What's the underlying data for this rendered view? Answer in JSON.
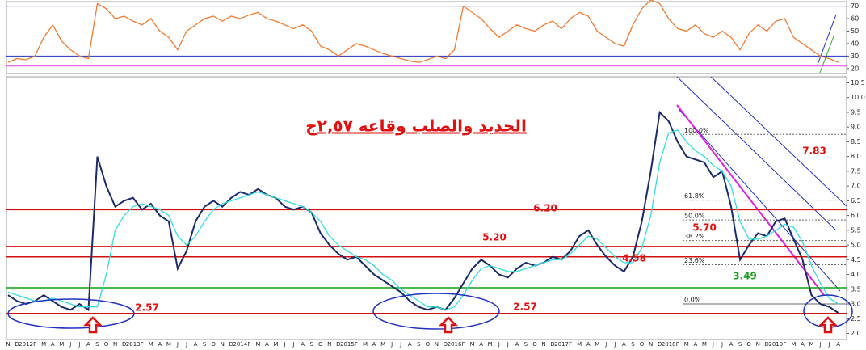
{
  "chart_data": [
    {
      "type": "line",
      "ylim": [
        16,
        73
      ],
      "yticks": [
        20,
        30,
        40,
        50,
        60,
        70
      ],
      "hlines": [
        {
          "value": 70,
          "color": "#2030c0"
        },
        {
          "value": 30,
          "color": "#2030c0"
        },
        {
          "value": 22,
          "color": "#e040e0"
        }
      ],
      "series": [
        {
          "color": "#f07a30",
          "values": [
            25,
            28,
            27,
            30,
            45,
            55,
            42,
            35,
            30,
            28,
            72,
            68,
            60,
            62,
            58,
            55,
            60,
            50,
            45,
            35,
            50,
            55,
            60,
            62,
            58,
            62,
            60,
            63,
            65,
            60,
            58,
            55,
            52,
            55,
            50,
            38,
            35,
            30,
            35,
            40,
            38,
            35,
            32,
            30,
            28,
            26,
            25,
            27,
            30,
            28,
            35,
            70,
            65,
            60,
            52,
            45,
            50,
            55,
            52,
            50,
            55,
            58,
            52,
            60,
            65,
            62,
            50,
            45,
            40,
            38,
            55,
            68,
            75,
            72,
            60,
            52,
            50,
            55,
            48,
            45,
            50,
            45,
            35,
            48,
            55,
            50,
            58,
            60,
            45,
            40,
            35,
            30,
            28,
            25
          ]
        }
      ]
    },
    {
      "type": "line",
      "title": "الحديد والصلب وقاعه ٢,٥٧ج",
      "categories": [
        "N",
        "D",
        "2012",
        "F",
        "M",
        "A",
        "M",
        "J",
        "J",
        "A",
        "S",
        "O",
        "N",
        "D",
        "2013",
        "F",
        "M",
        "A",
        "M",
        "J",
        "J",
        "A",
        "S",
        "O",
        "N",
        "D",
        "2014",
        "F",
        "M",
        "A",
        "M",
        "J",
        "J",
        "A",
        "S",
        "O",
        "N",
        "D",
        "2015",
        "F",
        "M",
        "A",
        "M",
        "J",
        "J",
        "A",
        "S",
        "O",
        "N",
        "D",
        "2016",
        "F",
        "M",
        "A",
        "M",
        "J",
        "J",
        "A",
        "S",
        "O",
        "N",
        "D",
        "2017",
        "F",
        "M",
        "A",
        "M",
        "J",
        "J",
        "A",
        "S",
        "O",
        "N",
        "D",
        "2018",
        "F",
        "M",
        "A",
        "M",
        "J",
        "J",
        "A",
        "S",
        "O",
        "N",
        "D",
        "2019",
        "F",
        "M",
        "A",
        "M",
        "J",
        "J",
        "A"
      ],
      "ylim": [
        1.85,
        10.65
      ],
      "yticks": [
        {
          "value": 2,
          "label": "2.0"
        },
        2.5,
        {
          "value": 3,
          "label": "3.0"
        },
        3.5,
        {
          "value": 4,
          "label": "4.0"
        },
        4.5,
        {
          "value": 5,
          "label": "5.0"
        },
        5.5,
        {
          "value": 6,
          "label": "6.0"
        },
        6.5,
        {
          "value": 7,
          "label": "7.0"
        },
        7.5,
        {
          "value": 8,
          "label": "8.0"
        },
        8.5,
        {
          "value": 9,
          "label": "9.0"
        },
        9.5,
        {
          "value": 10,
          "label": "10.0"
        },
        10.5
      ],
      "series": [
        {
          "color": "#1a2a6c",
          "values": [
            3.3,
            3.1,
            3.0,
            3.1,
            3.3,
            3.1,
            2.9,
            2.8,
            3.0,
            2.8,
            8.0,
            7.0,
            6.3,
            6.5,
            6.6,
            6.2,
            6.4,
            6.0,
            5.8,
            4.2,
            4.8,
            5.8,
            6.3,
            6.5,
            6.3,
            6.6,
            6.8,
            6.7,
            6.9,
            6.7,
            6.6,
            6.3,
            6.2,
            6.3,
            6.1,
            5.4,
            5.0,
            4.7,
            4.5,
            4.6,
            4.3,
            4.0,
            3.8,
            3.6,
            3.4,
            3.1,
            2.9,
            2.8,
            2.9,
            2.8,
            3.2,
            3.7,
            4.2,
            4.5,
            4.3,
            4.0,
            3.9,
            4.2,
            4.4,
            4.3,
            4.4,
            4.6,
            4.5,
            4.8,
            5.3,
            5.5,
            5.0,
            4.6,
            4.3,
            4.1,
            4.6,
            5.8,
            7.5,
            9.5,
            9.2,
            8.5,
            8.0,
            7.9,
            7.8,
            7.3,
            7.5,
            6.3,
            4.5,
            5.0,
            5.4,
            5.3,
            5.8,
            5.9,
            5.2,
            4.5,
            3.3,
            3.0,
            2.9,
            2.7
          ]
        },
        {
          "color": "#33dddd",
          "values": [
            3.4,
            3.3,
            3.2,
            3.1,
            3.1,
            3.2,
            3.1,
            3.0,
            2.9,
            2.9,
            2.9,
            4.0,
            5.5,
            6.0,
            6.3,
            6.4,
            6.3,
            6.2,
            6.0,
            5.3,
            5.0,
            5.3,
            5.8,
            6.2,
            6.4,
            6.5,
            6.6,
            6.7,
            6.8,
            6.7,
            6.6,
            6.5,
            6.4,
            6.3,
            6.1,
            5.8,
            5.3,
            5.0,
            4.8,
            4.6,
            4.5,
            4.3,
            4.0,
            3.8,
            3.5,
            3.3,
            3.1,
            2.9,
            2.9,
            2.8,
            2.9,
            3.3,
            3.8,
            4.2,
            4.3,
            4.2,
            4.1,
            4.1,
            4.2,
            4.3,
            4.4,
            4.5,
            4.5,
            4.7,
            5.0,
            5.3,
            5.2,
            4.9,
            4.6,
            4.4,
            4.4,
            4.9,
            6.0,
            7.8,
            8.8,
            8.9,
            8.5,
            8.2,
            8.0,
            7.7,
            7.5,
            7.0,
            5.8,
            5.2,
            5.2,
            5.3,
            5.5,
            5.7,
            5.6,
            5.1,
            4.3,
            3.7,
            3.2,
            3.0
          ]
        }
      ],
      "hlines": [
        {
          "value": 6.2,
          "color": "#d01010"
        },
        {
          "value": 4.95,
          "color": "#d01010"
        },
        {
          "value": 4.6,
          "color": "#d01010"
        },
        {
          "value": 2.68,
          "color": "#d01010"
        },
        {
          "value": 3.55,
          "color": "#10a010"
        }
      ],
      "fib_levels": [
        {
          "value": 3.0,
          "label": "0.0%"
        },
        {
          "value": 4.33,
          "label": "23.6%"
        },
        {
          "value": 5.15,
          "label": "38.2%"
        },
        {
          "value": 5.85,
          "label": "50.0%"
        },
        {
          "value": 6.52,
          "label": "61.8%"
        },
        {
          "value": 8.75,
          "label": "100.0%"
        }
      ],
      "annotations": [
        "6.20",
        "5.20",
        "4.58",
        "2.57",
        "2.57",
        "3.49",
        "5.70",
        "7.83"
      ]
    }
  ]
}
